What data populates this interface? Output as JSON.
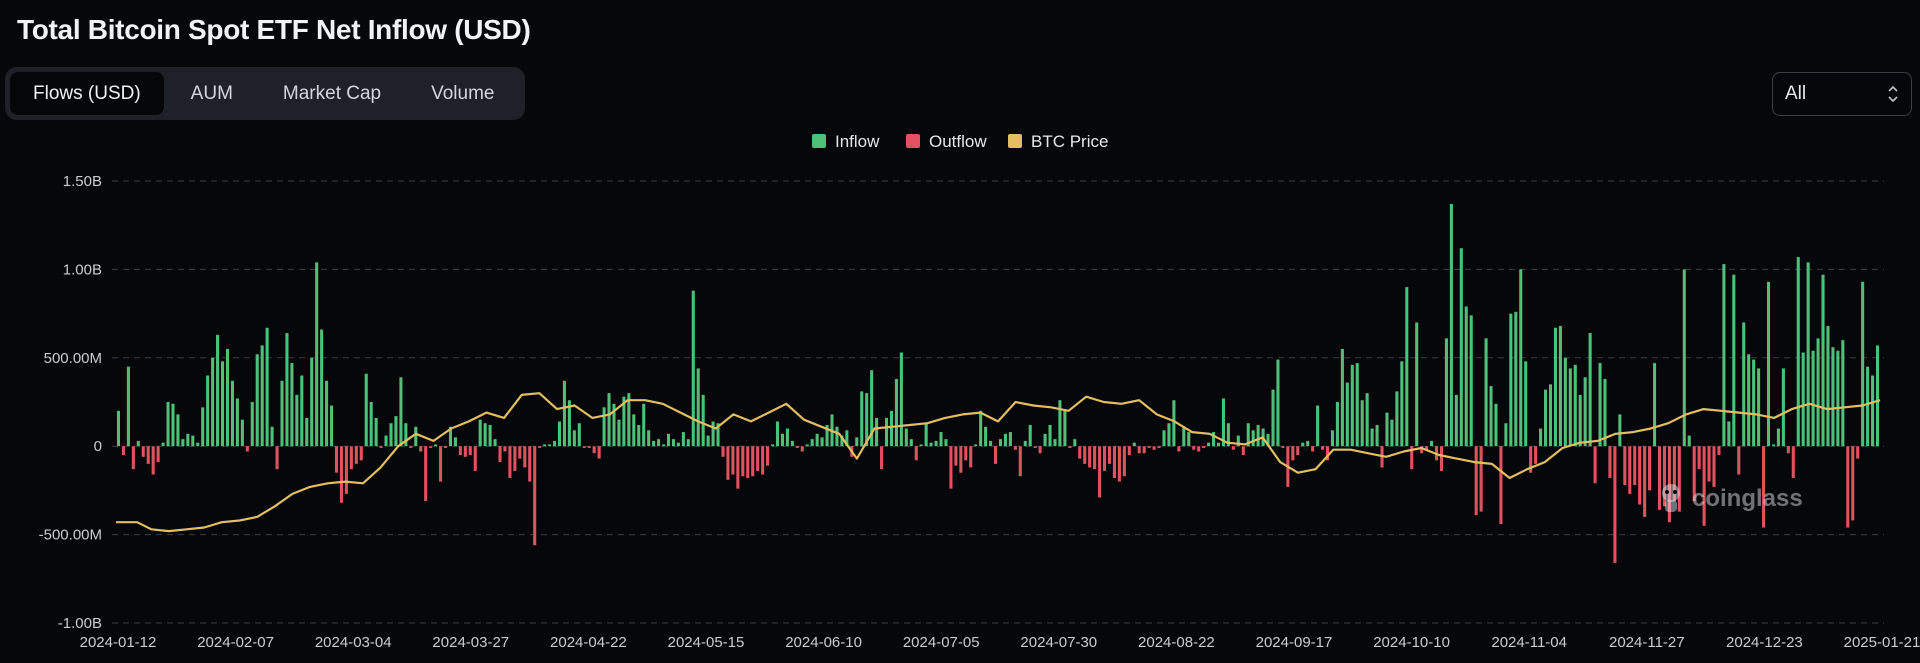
{
  "page": {
    "title": "Total Bitcoin Spot ETF Net Inflow (USD)",
    "tabs": [
      "Flows (USD)",
      "AUM",
      "Market Cap",
      "Volume"
    ],
    "active_tab": 0,
    "range_select": "All",
    "watermark": "coinglass"
  },
  "colors": {
    "inflow": "#4fc07a",
    "outflow": "#e05260",
    "btc_price": "#e3bf62",
    "grid": "#3a3d44"
  },
  "chart_data": {
    "type": "bar",
    "title": "Total Bitcoin Spot ETF Net Inflow (USD)",
    "legend": [
      {
        "name": "Inflow",
        "color": "#4fc07a"
      },
      {
        "name": "Outflow",
        "color": "#e05260"
      },
      {
        "name": "BTC Price",
        "color": "#e3bf62"
      }
    ],
    "legend_position": "top-center",
    "grid": true,
    "y_unit": "USD",
    "ylim": [
      -1000000000,
      1500000000
    ],
    "y_ticks": [
      {
        "value": 1500000000,
        "label": "1.50B"
      },
      {
        "value": 1000000000,
        "label": "1.00B"
      },
      {
        "value": 500000000,
        "label": "500.00M"
      },
      {
        "value": 0,
        "label": "0"
      },
      {
        "value": -500000000,
        "label": "-500.00M"
      },
      {
        "value": -1000000000,
        "label": "-1.00B"
      }
    ],
    "x_ticks": [
      "2024-01-12",
      "2024-02-07",
      "2024-03-04",
      "2024-03-27",
      "2024-04-22",
      "2024-05-15",
      "2024-06-10",
      "2024-07-05",
      "2024-07-30",
      "2024-08-22",
      "2024-09-17",
      "2024-10-10",
      "2024-11-04",
      "2024-11-27",
      "2024-12-23",
      "2025-01-21"
    ],
    "flows_usd_millions": [
      200,
      -50,
      450,
      -130,
      30,
      -60,
      -100,
      -160,
      -90,
      20,
      250,
      240,
      180,
      40,
      70,
      60,
      20,
      220,
      400,
      500,
      630,
      480,
      550,
      370,
      270,
      150,
      -30,
      250,
      520,
      570,
      670,
      110,
      -130,
      370,
      640,
      470,
      290,
      400,
      160,
      500,
      1040,
      660,
      370,
      230,
      -150,
      -320,
      -270,
      -130,
      -100,
      -80,
      410,
      250,
      160,
      -10,
      60,
      130,
      170,
      390,
      130,
      -10,
      110,
      -30,
      -310,
      -10,
      10,
      -200,
      -10,
      110,
      50,
      -50,
      -60,
      -50,
      -140,
      150,
      130,
      120,
      40,
      -90,
      -30,
      -180,
      -140,
      -70,
      -120,
      -200,
      -560,
      -10,
      10,
      10,
      30,
      140,
      370,
      260,
      90,
      130,
      -10,
      -10,
      -40,
      -70,
      220,
      300,
      240,
      150,
      280,
      300,
      180,
      120,
      240,
      90,
      30,
      40,
      10,
      70,
      40,
      20,
      80,
      40,
      880,
      440,
      290,
      60,
      140,
      130,
      -60,
      -190,
      -160,
      -240,
      -170,
      -180,
      -170,
      -140,
      -160,
      -110,
      10,
      140,
      70,
      100,
      30,
      -10,
      -30,
      10,
      40,
      70,
      50,
      120,
      180,
      110,
      60,
      90,
      -60,
      50,
      310,
      300,
      430,
      160,
      -130,
      160,
      200,
      380,
      530,
      100,
      40,
      -80,
      10,
      130,
      20,
      30,
      80,
      40,
      -240,
      -110,
      -150,
      -80,
      -120,
      10,
      200,
      110,
      30,
      -100,
      40,
      70,
      80,
      -20,
      -170,
      30,
      120,
      -10,
      -40,
      70,
      120,
      40,
      260,
      200,
      -10,
      40,
      -70,
      -100,
      -120,
      -130,
      -290,
      -140,
      -100,
      -180,
      -200,
      -170,
      -50,
      20,
      -40,
      -40,
      -10,
      -20,
      -10,
      90,
      130,
      260,
      -30,
      110,
      80,
      -20,
      -30,
      -10,
      20,
      80,
      20,
      270,
      130,
      -20,
      60,
      -50,
      130,
      90,
      120,
      100,
      70,
      320,
      490,
      -10,
      -230,
      -80,
      -50,
      20,
      30,
      -30,
      230,
      -20,
      -80,
      90,
      250,
      550,
      360,
      460,
      470,
      260,
      300,
      100,
      120,
      -120,
      190,
      150,
      310,
      480,
      900,
      -130,
      700,
      -40,
      -20,
      30,
      -80,
      -140,
      610,
      1370,
      290,
      1120,
      790,
      740,
      -390,
      -370,
      610,
      340,
      240,
      -440,
      130,
      750,
      760,
      1000,
      480,
      -150,
      -100,
      100,
      320,
      350,
      670,
      680,
      500,
      440,
      460,
      290,
      390,
      640,
      -210,
      470,
      380,
      -180,
      -660,
      180,
      -220,
      -270,
      -220,
      -330,
      -400,
      -250,
      470,
      -360,
      -340,
      -430,
      -310,
      -370,
      1000,
      60,
      -310,
      -130,
      -450,
      -200,
      -230,
      -50,
      1030,
      140,
      970,
      -160,
      700,
      520,
      490,
      440,
      -460,
      930,
      10,
      100,
      440,
      -40,
      -180,
      1070,
      530,
      1040,
      540,
      610,
      970,
      680,
      560,
      540,
      600,
      -460,
      -420,
      -70,
      930,
      450,
      400,
      570
    ],
    "btc_price_points": [
      [
        0.0,
        -430
      ],
      [
        0.012,
        -430
      ],
      [
        0.02,
        -470
      ],
      [
        0.03,
        -480
      ],
      [
        0.04,
        -470
      ],
      [
        0.05,
        -460
      ],
      [
        0.06,
        -430
      ],
      [
        0.07,
        -420
      ],
      [
        0.08,
        -400
      ],
      [
        0.09,
        -340
      ],
      [
        0.1,
        -270
      ],
      [
        0.11,
        -230
      ],
      [
        0.12,
        -210
      ],
      [
        0.13,
        -200
      ],
      [
        0.14,
        -210
      ],
      [
        0.15,
        -120
      ],
      [
        0.16,
        0
      ],
      [
        0.17,
        70
      ],
      [
        0.18,
        30
      ],
      [
        0.19,
        100
      ],
      [
        0.2,
        140
      ],
      [
        0.21,
        190
      ],
      [
        0.22,
        160
      ],
      [
        0.23,
        290
      ],
      [
        0.24,
        300
      ],
      [
        0.25,
        210
      ],
      [
        0.26,
        230
      ],
      [
        0.27,
        160
      ],
      [
        0.28,
        180
      ],
      [
        0.29,
        260
      ],
      [
        0.3,
        260
      ],
      [
        0.31,
        240
      ],
      [
        0.32,
        190
      ],
      [
        0.33,
        140
      ],
      [
        0.34,
        100
      ],
      [
        0.35,
        180
      ],
      [
        0.36,
        140
      ],
      [
        0.37,
        190
      ],
      [
        0.38,
        240
      ],
      [
        0.39,
        150
      ],
      [
        0.4,
        110
      ],
      [
        0.41,
        70
      ],
      [
        0.42,
        -70
      ],
      [
        0.43,
        100
      ],
      [
        0.44,
        110
      ],
      [
        0.45,
        120
      ],
      [
        0.46,
        130
      ],
      [
        0.47,
        160
      ],
      [
        0.48,
        180
      ],
      [
        0.49,
        190
      ],
      [
        0.5,
        140
      ],
      [
        0.51,
        250
      ],
      [
        0.52,
        230
      ],
      [
        0.53,
        220
      ],
      [
        0.54,
        200
      ],
      [
        0.55,
        280
      ],
      [
        0.56,
        250
      ],
      [
        0.57,
        240
      ],
      [
        0.58,
        260
      ],
      [
        0.59,
        180
      ],
      [
        0.6,
        140
      ],
      [
        0.61,
        80
      ],
      [
        0.62,
        70
      ],
      [
        0.63,
        20
      ],
      [
        0.64,
        10
      ],
      [
        0.65,
        50
      ],
      [
        0.66,
        -90
      ],
      [
        0.67,
        -150
      ],
      [
        0.68,
        -130
      ],
      [
        0.69,
        -20
      ],
      [
        0.7,
        -20
      ],
      [
        0.71,
        -40
      ],
      [
        0.72,
        -60
      ],
      [
        0.73,
        -30
      ],
      [
        0.74,
        -10
      ],
      [
        0.75,
        -50
      ],
      [
        0.76,
        -70
      ],
      [
        0.77,
        -90
      ],
      [
        0.78,
        -100
      ],
      [
        0.79,
        -180
      ],
      [
        0.8,
        -130
      ],
      [
        0.81,
        -90
      ],
      [
        0.82,
        -10
      ],
      [
        0.83,
        20
      ],
      [
        0.84,
        30
      ],
      [
        0.85,
        70
      ],
      [
        0.86,
        80
      ],
      [
        0.87,
        100
      ],
      [
        0.88,
        130
      ],
      [
        0.89,
        180
      ],
      [
        0.9,
        210
      ],
      [
        0.91,
        200
      ],
      [
        0.92,
        190
      ],
      [
        0.93,
        180
      ],
      [
        0.94,
        160
      ],
      [
        0.95,
        210
      ],
      [
        0.96,
        240
      ],
      [
        0.97,
        210
      ],
      [
        0.98,
        220
      ],
      [
        0.99,
        230
      ],
      [
        1.0,
        260
      ]
    ]
  }
}
